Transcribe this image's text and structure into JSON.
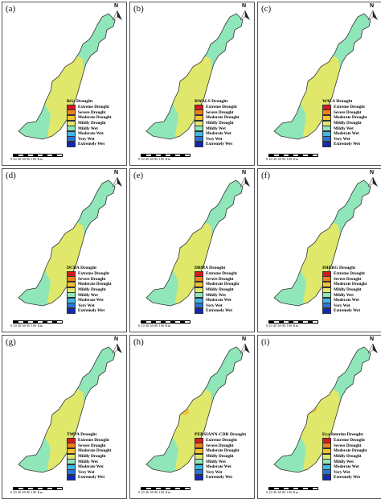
{
  "colors": {
    "Extreme Drought": "#d7191c",
    "Severe Drought": "#f0821c",
    "Moderate Drought": "#f2c232",
    "Mildly Drought": "#dfe86a",
    "Mildly Wet": "#8fe6b8",
    "Moderate Wet": "#3fb8e6",
    "Very Wet": "#2a74d4",
    "Extremely Wet": "#1428b8"
  },
  "legend_items": [
    "Extreme Drought",
    "Severe Drought",
    "Moderate Drought",
    "Mildly Drought",
    "Mildly Wet",
    "Moderate Wet",
    "Very Wet",
    "Extremely Wet"
  ],
  "north_label": "N",
  "scale_text": "0   20   40   60   80   100 Km",
  "panels": [
    {
      "label": "(a)",
      "product": "RGs Drought",
      "wet_spots": [
        [
          0.35,
          0.12,
          "Mildly Wet"
        ],
        [
          0.28,
          0.3,
          "Mildly Wet"
        ]
      ],
      "dry_spots": []
    },
    {
      "label": "(b)",
      "product": "RWALS Drought",
      "wet_spots": [
        [
          0.35,
          0.1,
          "Moderate Wet"
        ],
        [
          0.42,
          0.2,
          "Moderate Wet"
        ],
        [
          0.3,
          0.32,
          "Moderate Wet"
        ]
      ],
      "dry_spots": []
    },
    {
      "label": "(c)",
      "product": "WALS Drought",
      "wet_spots": [
        [
          0.35,
          0.1,
          "Moderate Wet"
        ],
        [
          0.42,
          0.2,
          "Moderate Wet"
        ],
        [
          0.3,
          0.32,
          "Moderate Wet"
        ]
      ],
      "dry_spots": []
    },
    {
      "label": "(d)",
      "product": "DCBA Drought",
      "wet_spots": [
        [
          0.33,
          0.1,
          "Moderate Wet"
        ],
        [
          0.4,
          0.18,
          "Very Wet"
        ],
        [
          0.3,
          0.3,
          "Moderate Wet"
        ],
        [
          0.25,
          0.42,
          "Moderate Wet"
        ],
        [
          0.12,
          0.55,
          "Moderate Wet"
        ]
      ],
      "dry_spots": []
    },
    {
      "label": "(e)",
      "product": "DBMA Drought",
      "wet_spots": [
        [
          0.33,
          0.1,
          "Moderate Wet"
        ],
        [
          0.38,
          0.2,
          "Very Wet"
        ],
        [
          0.28,
          0.32,
          "Moderate Wet"
        ],
        [
          0.22,
          0.45,
          "Moderate Wet"
        ]
      ],
      "dry_spots": [
        [
          0.12,
          0.5,
          "Moderate Drought"
        ]
      ]
    },
    {
      "label": "(f)",
      "product": "IMERG Drought",
      "wet_spots": [
        [
          0.3,
          0.08,
          "Moderate Wet"
        ],
        [
          0.38,
          0.18,
          "Very Wet"
        ],
        [
          0.3,
          0.3,
          "Moderate Wet"
        ],
        [
          0.2,
          0.5,
          "Moderate Wet"
        ]
      ],
      "dry_spots": [
        [
          0.25,
          0.38,
          "Moderate Drought"
        ]
      ]
    },
    {
      "label": "(g)",
      "product": "TMPA Drought",
      "wet_spots": [
        [
          0.33,
          0.08,
          "Very Wet"
        ],
        [
          0.4,
          0.18,
          "Very Wet"
        ],
        [
          0.2,
          0.5,
          "Moderate Wet"
        ]
      ],
      "dry_spots": [
        [
          0.28,
          0.38,
          "Severe Drought"
        ],
        [
          0.12,
          0.52,
          "Moderate Drought"
        ],
        [
          0.22,
          0.6,
          "Moderate Drought"
        ],
        [
          0.05,
          0.62,
          "Moderate Drought"
        ]
      ]
    },
    {
      "label": "(h)",
      "product": "PERSIANN-CDR Drought",
      "wet_spots": [
        [
          0.33,
          0.05,
          "Extremely Wet"
        ],
        [
          0.38,
          0.15,
          "Very Wet"
        ],
        [
          0.28,
          0.28,
          "Very Wet"
        ],
        [
          0.2,
          0.45,
          "Moderate Wet"
        ],
        [
          0.1,
          0.55,
          "Moderate Wet"
        ]
      ],
      "dry_spots": [
        [
          0.24,
          0.36,
          "Moderate Drought"
        ],
        [
          0.3,
          0.5,
          "Moderate Drought"
        ]
      ]
    },
    {
      "label": "(i)",
      "product": "Era-Interim Drought",
      "wet_spots": [
        [
          0.33,
          0.06,
          "Extremely Wet"
        ],
        [
          0.38,
          0.16,
          "Very Wet"
        ],
        [
          0.28,
          0.3,
          "Very Wet"
        ],
        [
          0.2,
          0.42,
          "Moderate Wet"
        ]
      ],
      "dry_spots": [
        [
          0.25,
          0.36,
          "Severe Drought"
        ],
        [
          0.3,
          0.48,
          "Moderate Drought"
        ],
        [
          0.15,
          0.55,
          "Moderate Drought"
        ]
      ]
    }
  ]
}
